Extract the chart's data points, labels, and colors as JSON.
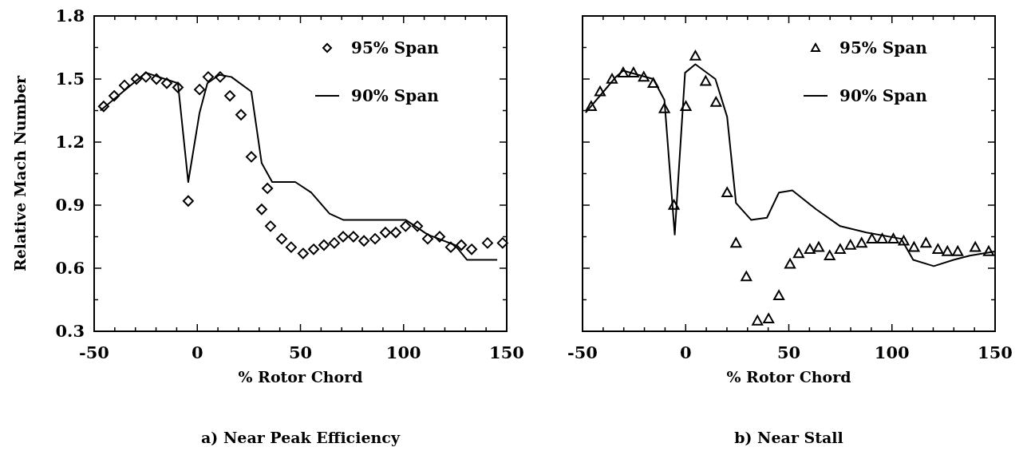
{
  "chart_data": [
    {
      "type": "scatter",
      "title": "a) Near Peak Efficiency",
      "xlabel": "% Rotor Chord",
      "ylabel": "Relative Mach Number",
      "xlim": [
        -50,
        150
      ],
      "ylim": [
        0.3,
        1.8
      ],
      "xticks": [
        -50,
        {
          "value": -40,
          "label": null
        },
        {
          "value": -30,
          "label": null
        },
        {
          "value": -20,
          "label": null
        },
        {
          "value": -10,
          "label": null
        },
        0,
        {
          "value": 10,
          "label": null
        },
        {
          "value": 20,
          "label": null
        },
        {
          "value": 30,
          "label": null
        },
        {
          "value": 40,
          "label": null
        },
        50,
        {
          "value": 60,
          "label": null
        },
        {
          "value": 70,
          "label": null
        },
        {
          "value": 80,
          "label": null
        },
        {
          "value": 90,
          "label": null
        },
        100,
        {
          "value": 110,
          "label": null
        },
        {
          "value": 120,
          "label": null
        },
        {
          "value": 130,
          "label": null
        },
        {
          "value": 140,
          "label": null
        },
        150
      ],
      "yticks": [
        0.3,
        {
          "value": 0.45,
          "label": null
        },
        0.6,
        {
          "value": 0.75,
          "label": null
        },
        0.9,
        {
          "value": 1.05,
          "label": null
        },
        1.2,
        {
          "value": 1.35,
          "label": null
        },
        1.5,
        {
          "value": 1.65,
          "label": null
        },
        1.8
      ],
      "legend": "top right",
      "series": [
        {
          "name": "95% Span",
          "marker": "diamond",
          "color": "#000000",
          "x": [
            -45.4,
            -40.3,
            -35.3,
            -29.5,
            -24.9,
            -19.8,
            -14.8,
            -9.4,
            -4.4,
            1.1,
            5.3,
            11.1,
            15.8,
            21.2,
            26.2,
            31.2,
            34,
            35.5,
            40.9,
            45.5,
            51.3,
            56.4,
            61.4,
            66.4,
            70.7,
            75.7,
            80.8,
            86.2,
            91.2,
            96.2,
            101,
            106.7,
            111.7,
            117.5,
            122.9,
            128,
            133,
            140.7,
            148
          ],
          "values": [
            1.37,
            1.42,
            1.47,
            1.5,
            1.51,
            1.5,
            1.48,
            1.46,
            0.92,
            1.45,
            1.51,
            1.51,
            1.42,
            1.33,
            1.13,
            0.88,
            0.98,
            0.8,
            0.74,
            0.7,
            0.67,
            0.69,
            0.71,
            0.72,
            0.75,
            0.75,
            0.73,
            0.74,
            0.77,
            0.77,
            0.8,
            0.8,
            0.74,
            0.75,
            0.7,
            0.71,
            0.69,
            0.72,
            0.72
          ]
        },
        {
          "name": "90% Span",
          "type": "line",
          "marker": "none",
          "color": "#000000",
          "x": [
            -47,
            -24.9,
            -9.4,
            -4.4,
            1.1,
            4.9,
            10.7,
            16.5,
            26.2,
            31.2,
            36.3,
            42.1,
            47.5,
            55.2,
            64.1,
            70.7,
            86.2,
            101,
            111.7,
            124.9,
            130.7,
            145.4
          ],
          "values": [
            1.35,
            1.53,
            1.48,
            1.01,
            1.34,
            1.48,
            1.52,
            1.51,
            1.44,
            1.1,
            1.01,
            1.01,
            1.01,
            0.96,
            0.86,
            0.83,
            0.83,
            0.83,
            0.76,
            0.71,
            0.64,
            0.64
          ]
        }
      ]
    },
    {
      "type": "scatter",
      "title": "b) Near Stall",
      "xlabel": "% Rotor Chord",
      "xlim": [
        -50,
        150
      ],
      "ylim": [
        0.3,
        1.8
      ],
      "tick_labels": "x",
      "xticks": [
        -50,
        {
          "value": -40,
          "label": null
        },
        {
          "value": -30,
          "label": null
        },
        {
          "value": -20,
          "label": null
        },
        {
          "value": -10,
          "label": null
        },
        0,
        {
          "value": 10,
          "label": null
        },
        {
          "value": 20,
          "label": null
        },
        {
          "value": 30,
          "label": null
        },
        {
          "value": 40,
          "label": null
        },
        50,
        {
          "value": 60,
          "label": null
        },
        {
          "value": 70,
          "label": null
        },
        {
          "value": 80,
          "label": null
        },
        {
          "value": 90,
          "label": null
        },
        100,
        {
          "value": 110,
          "label": null
        },
        {
          "value": 120,
          "label": null
        },
        {
          "value": 130,
          "label": null
        },
        {
          "value": 140,
          "label": null
        },
        150
      ],
      "yticks": [
        0.3,
        {
          "value": 0.45,
          "label": null
        },
        0.6,
        {
          "value": 0.75,
          "label": null
        },
        0.9,
        {
          "value": 1.05,
          "label": null
        },
        1.2,
        {
          "value": 1.35,
          "label": null
        },
        1.5,
        {
          "value": 1.65,
          "label": null
        },
        1.8
      ],
      "legend": "top right",
      "series": [
        {
          "name": "95% Span",
          "marker": "triangle",
          "color": "#000000",
          "x": [
            -45.8,
            -41.5,
            -35.7,
            -30.3,
            -25.3,
            -20.3,
            -15.7,
            -10.3,
            -5.7,
            0.1,
            4.7,
            9.7,
            14.7,
            20.1,
            24.4,
            29.4,
            34.8,
            40.2,
            45.2,
            50.6,
            54.8,
            60.2,
            64.5,
            69.8,
            74.9,
            79.9,
            85.3,
            90.3,
            95.3,
            100.7,
            105.7,
            110.7,
            116.5,
            122.3,
            126.9,
            131.9,
            140.4,
            146.9
          ],
          "values": [
            1.37,
            1.44,
            1.5,
            1.53,
            1.53,
            1.51,
            1.48,
            1.36,
            0.9,
            1.37,
            1.61,
            1.49,
            1.39,
            0.96,
            0.72,
            0.56,
            0.35,
            0.36,
            0.47,
            0.62,
            0.67,
            0.69,
            0.7,
            0.66,
            0.69,
            0.71,
            0.72,
            0.74,
            0.74,
            0.74,
            0.73,
            0.7,
            0.72,
            0.69,
            0.68,
            0.68,
            0.7,
            0.68
          ]
        },
        {
          "name": "90% Span",
          "type": "line",
          "marker": "none",
          "color": "#000000",
          "x": [
            -48.5,
            -33.8,
            -30.3,
            -15.7,
            -10.3,
            -5.3,
            -0.3,
            4.7,
            14.4,
            20.1,
            24.4,
            31.7,
            39.4,
            45.2,
            51.7,
            63.3,
            74.9,
            87.6,
            104.5,
            110.3,
            120.3,
            129.9,
            137.7,
            150
          ],
          "values": [
            1.34,
            1.51,
            1.54,
            1.5,
            1.4,
            0.76,
            1.53,
            1.57,
            1.5,
            1.32,
            0.91,
            0.83,
            0.84,
            0.96,
            0.97,
            0.88,
            0.8,
            0.77,
            0.74,
            0.64,
            0.61,
            0.64,
            0.66,
            0.68
          ]
        }
      ]
    }
  ]
}
